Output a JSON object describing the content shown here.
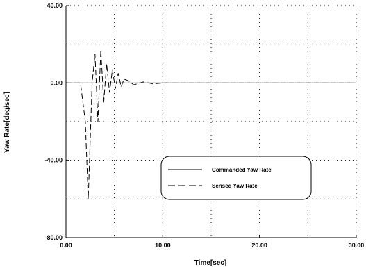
{
  "chart_data": {
    "type": "line",
    "xlabel": "Time[sec]",
    "ylabel": "Yaw Rate[deg/sec]",
    "xlim": [
      0,
      30
    ],
    "ylim": [
      -80,
      40
    ],
    "x_ticks": [
      0,
      10,
      20,
      30
    ],
    "y_ticks": [
      -80,
      -40,
      0,
      40
    ],
    "x_tick_labels": [
      "0.00",
      "10.00",
      "20.00",
      "30.00"
    ],
    "y_tick_labels": [
      "-80.00",
      "-40.00",
      "0.00",
      "40.00"
    ],
    "grid": "dotted",
    "legend_position": "lower-right",
    "series": [
      {
        "name": "Commanded Yaw Rate",
        "style": "solid",
        "x": [
          0,
          2.5,
          30
        ],
        "y": [
          0,
          0,
          0
        ]
      },
      {
        "name": "Sensed Yaw Rate",
        "style": "dashed",
        "x": [
          0,
          1.0,
          1.5,
          2.0,
          2.3,
          2.7,
          3.0,
          3.3,
          3.6,
          3.9,
          4.2,
          4.5,
          4.8,
          5.1,
          5.4,
          5.7,
          6.0,
          6.5,
          7.0,
          8.0,
          9.0,
          10.0,
          15.0,
          20.0,
          25.0,
          30.0
        ],
        "y": [
          0,
          0,
          0,
          -20,
          -60,
          0,
          15,
          -20,
          17,
          -10,
          10,
          -5,
          7,
          -3,
          5,
          -2,
          2,
          1,
          -1,
          0.5,
          -0.5,
          0,
          0,
          0,
          0,
          0
        ]
      }
    ]
  }
}
